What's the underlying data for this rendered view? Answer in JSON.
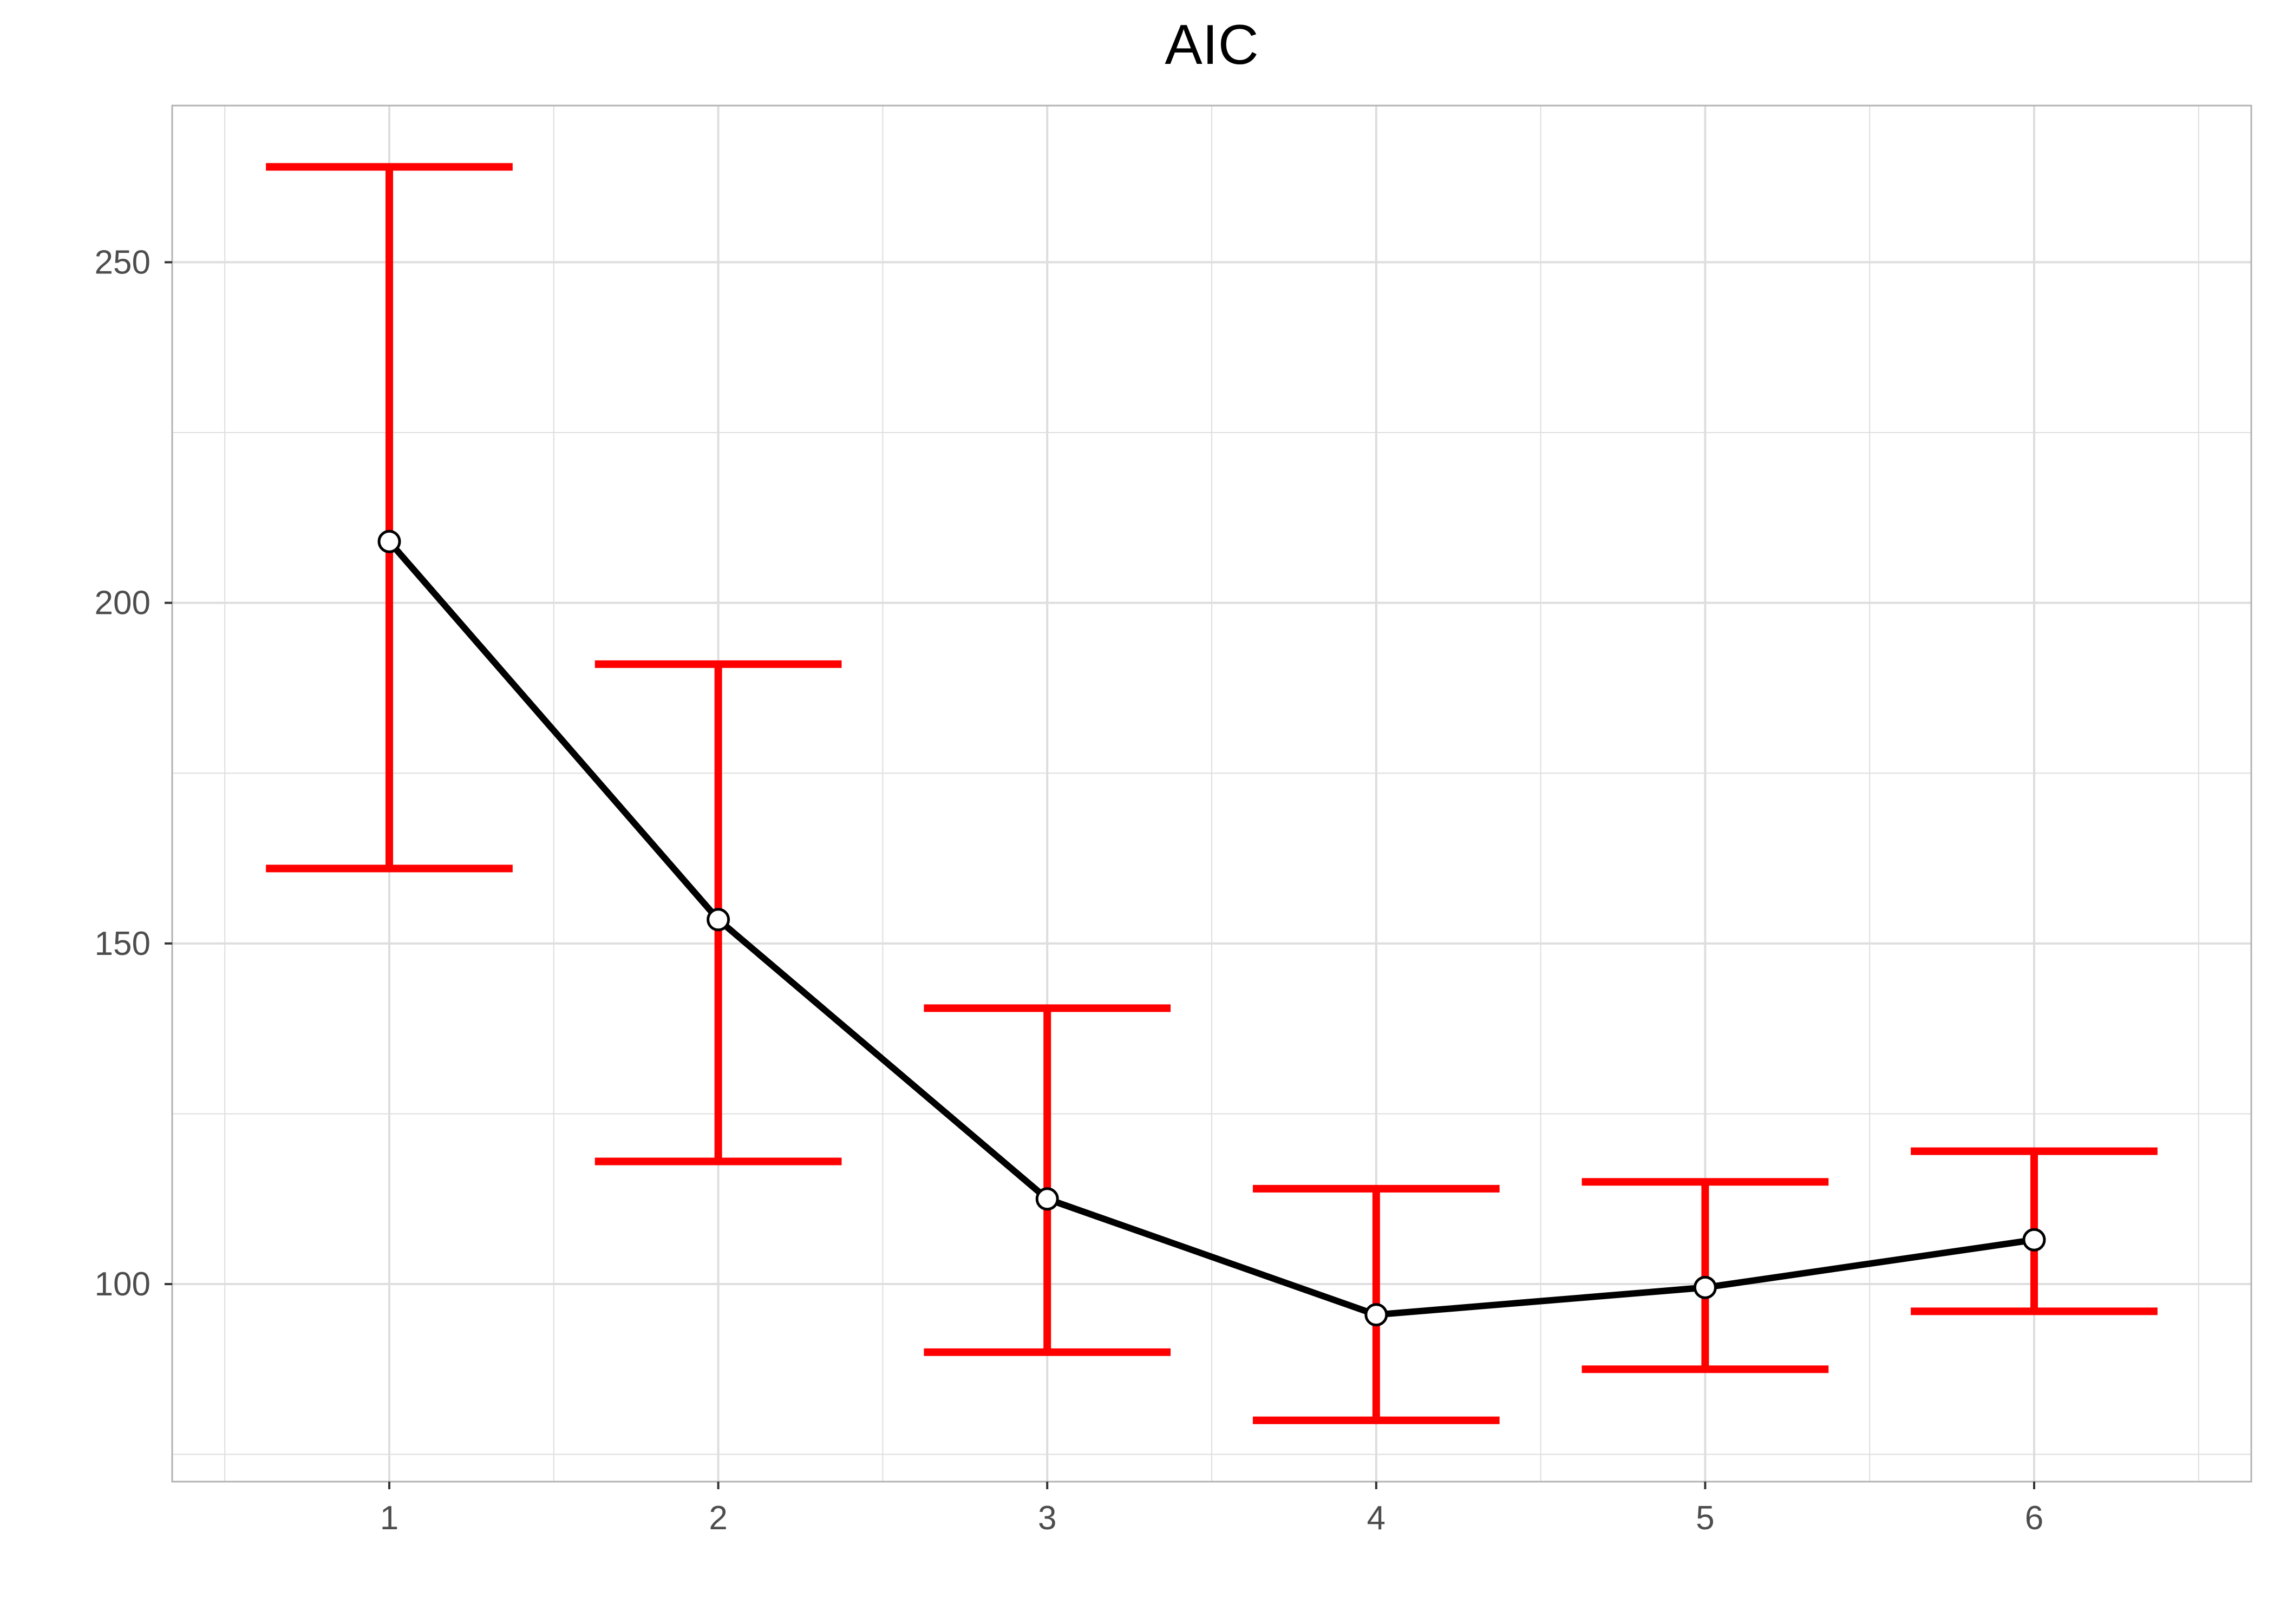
{
  "chart_data": {
    "type": "line",
    "title": "AIC",
    "xlabel": "",
    "ylabel": "",
    "x": [
      1,
      2,
      3,
      4,
      5,
      6
    ],
    "series": [
      {
        "values": [
          209,
          153.5,
          112.5,
          95.5,
          99.5,
          106.5
        ],
        "error_lower": [
          161,
          118,
          90,
          80,
          87.5,
          96
        ],
        "error_upper": [
          264,
          191,
          140.5,
          114,
          115,
          119.5
        ]
      }
    ],
    "xlim": [
      0.34,
      6.66
    ],
    "ylim": [
      71,
      273
    ],
    "x_ticks": [
      1,
      2,
      3,
      4,
      5,
      6
    ],
    "x_tick_labels": [
      "1",
      "2",
      "3",
      "4",
      "5",
      "6"
    ],
    "y_ticks": [
      100,
      150,
      200,
      250
    ],
    "y_tick_labels": [
      "100",
      "150",
      "200",
      "250"
    ],
    "grid": true,
    "legend": "none",
    "colors": {
      "line": "#000000",
      "error_bars": "#ff0000",
      "points_fill": "#ffffff",
      "grid": "#dedede",
      "panel_border": "#b3b3b3"
    }
  }
}
